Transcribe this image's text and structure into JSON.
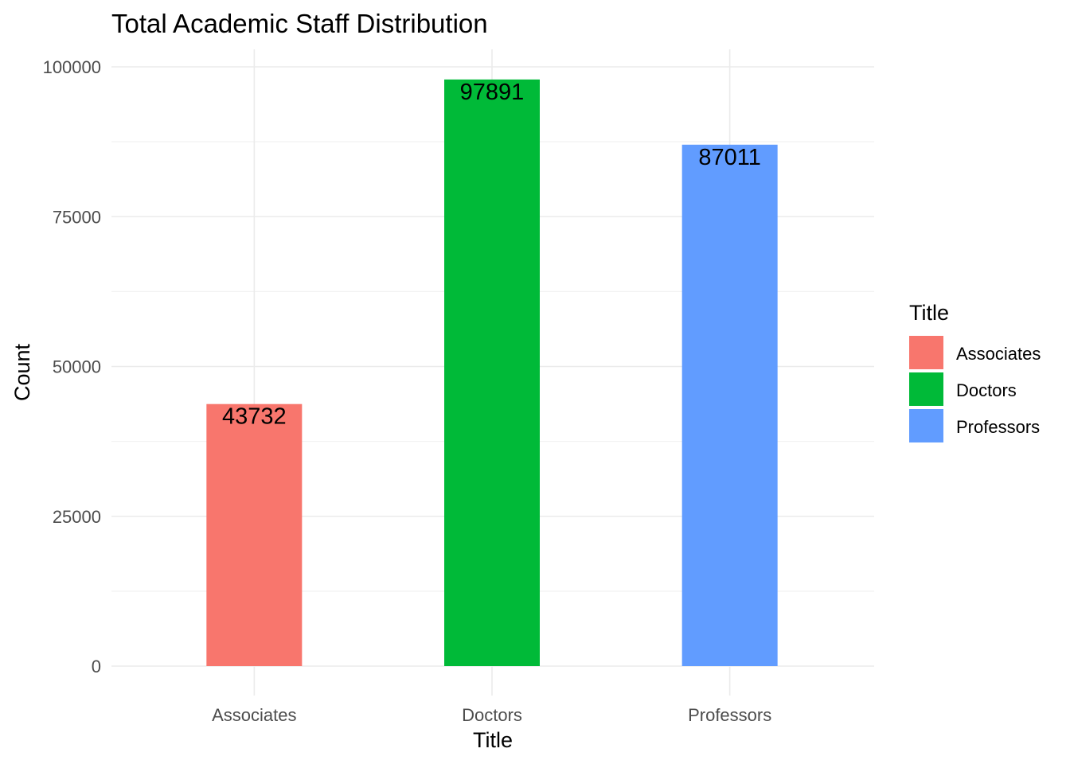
{
  "chart_data": {
    "type": "bar",
    "title": "Total Academic Staff Distribution",
    "xlabel": "Title",
    "ylabel": "Count",
    "categories": [
      "Associates",
      "Doctors",
      "Professors"
    ],
    "values": [
      43732,
      97891,
      87011
    ],
    "data_labels": [
      "43732",
      "97891",
      "87011"
    ],
    "colors": [
      "#F8766D",
      "#00BA38",
      "#619CFF"
    ],
    "ylim": [
      0,
      100000
    ],
    "y_ticks": [
      0,
      25000,
      50000,
      75000,
      100000
    ],
    "y_tick_labels": [
      "0",
      "25000",
      "50000",
      "75000",
      "100000"
    ],
    "grid": true,
    "legend": {
      "title": "Title",
      "position": "right",
      "entries": [
        "Associates",
        "Doctors",
        "Professors"
      ]
    }
  }
}
